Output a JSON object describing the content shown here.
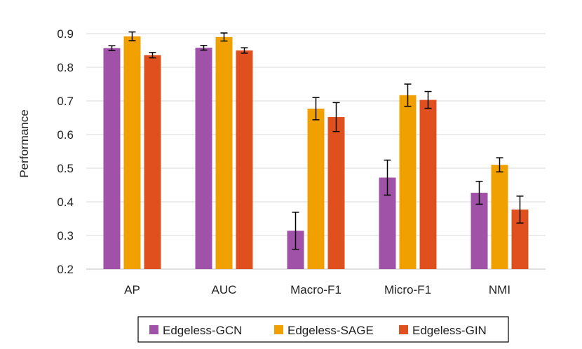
{
  "chart_data": {
    "type": "bar",
    "title": "",
    "xlabel": "",
    "ylabel": "Performance",
    "ylim": [
      0.2,
      0.9
    ],
    "yticks": [
      "0.2",
      "0.3",
      "0.4",
      "0.5",
      "0.6",
      "0.7",
      "0.8",
      "0.9"
    ],
    "grid": true,
    "legend_position": "bottom",
    "categories": [
      "AP",
      "AUC",
      "Macro-F1",
      "Micro-F1",
      "NMI"
    ],
    "series": [
      {
        "name": "Edgeless-GCN",
        "color": "#A052A8",
        "values": [
          0.857,
          0.858,
          0.314,
          0.472,
          0.427
        ],
        "errors": [
          0.007,
          0.007,
          0.055,
          0.052,
          0.034
        ]
      },
      {
        "name": "Edgeless-SAGE",
        "color": "#F0A000",
        "values": [
          0.892,
          0.89,
          0.677,
          0.717,
          0.51
        ],
        "errors": [
          0.013,
          0.012,
          0.033,
          0.033,
          0.021
        ]
      },
      {
        "name": "Edgeless-GIN",
        "color": "#E0501E",
        "values": [
          0.836,
          0.85,
          0.652,
          0.703,
          0.377
        ],
        "errors": [
          0.008,
          0.008,
          0.043,
          0.025,
          0.04
        ]
      }
    ]
  }
}
